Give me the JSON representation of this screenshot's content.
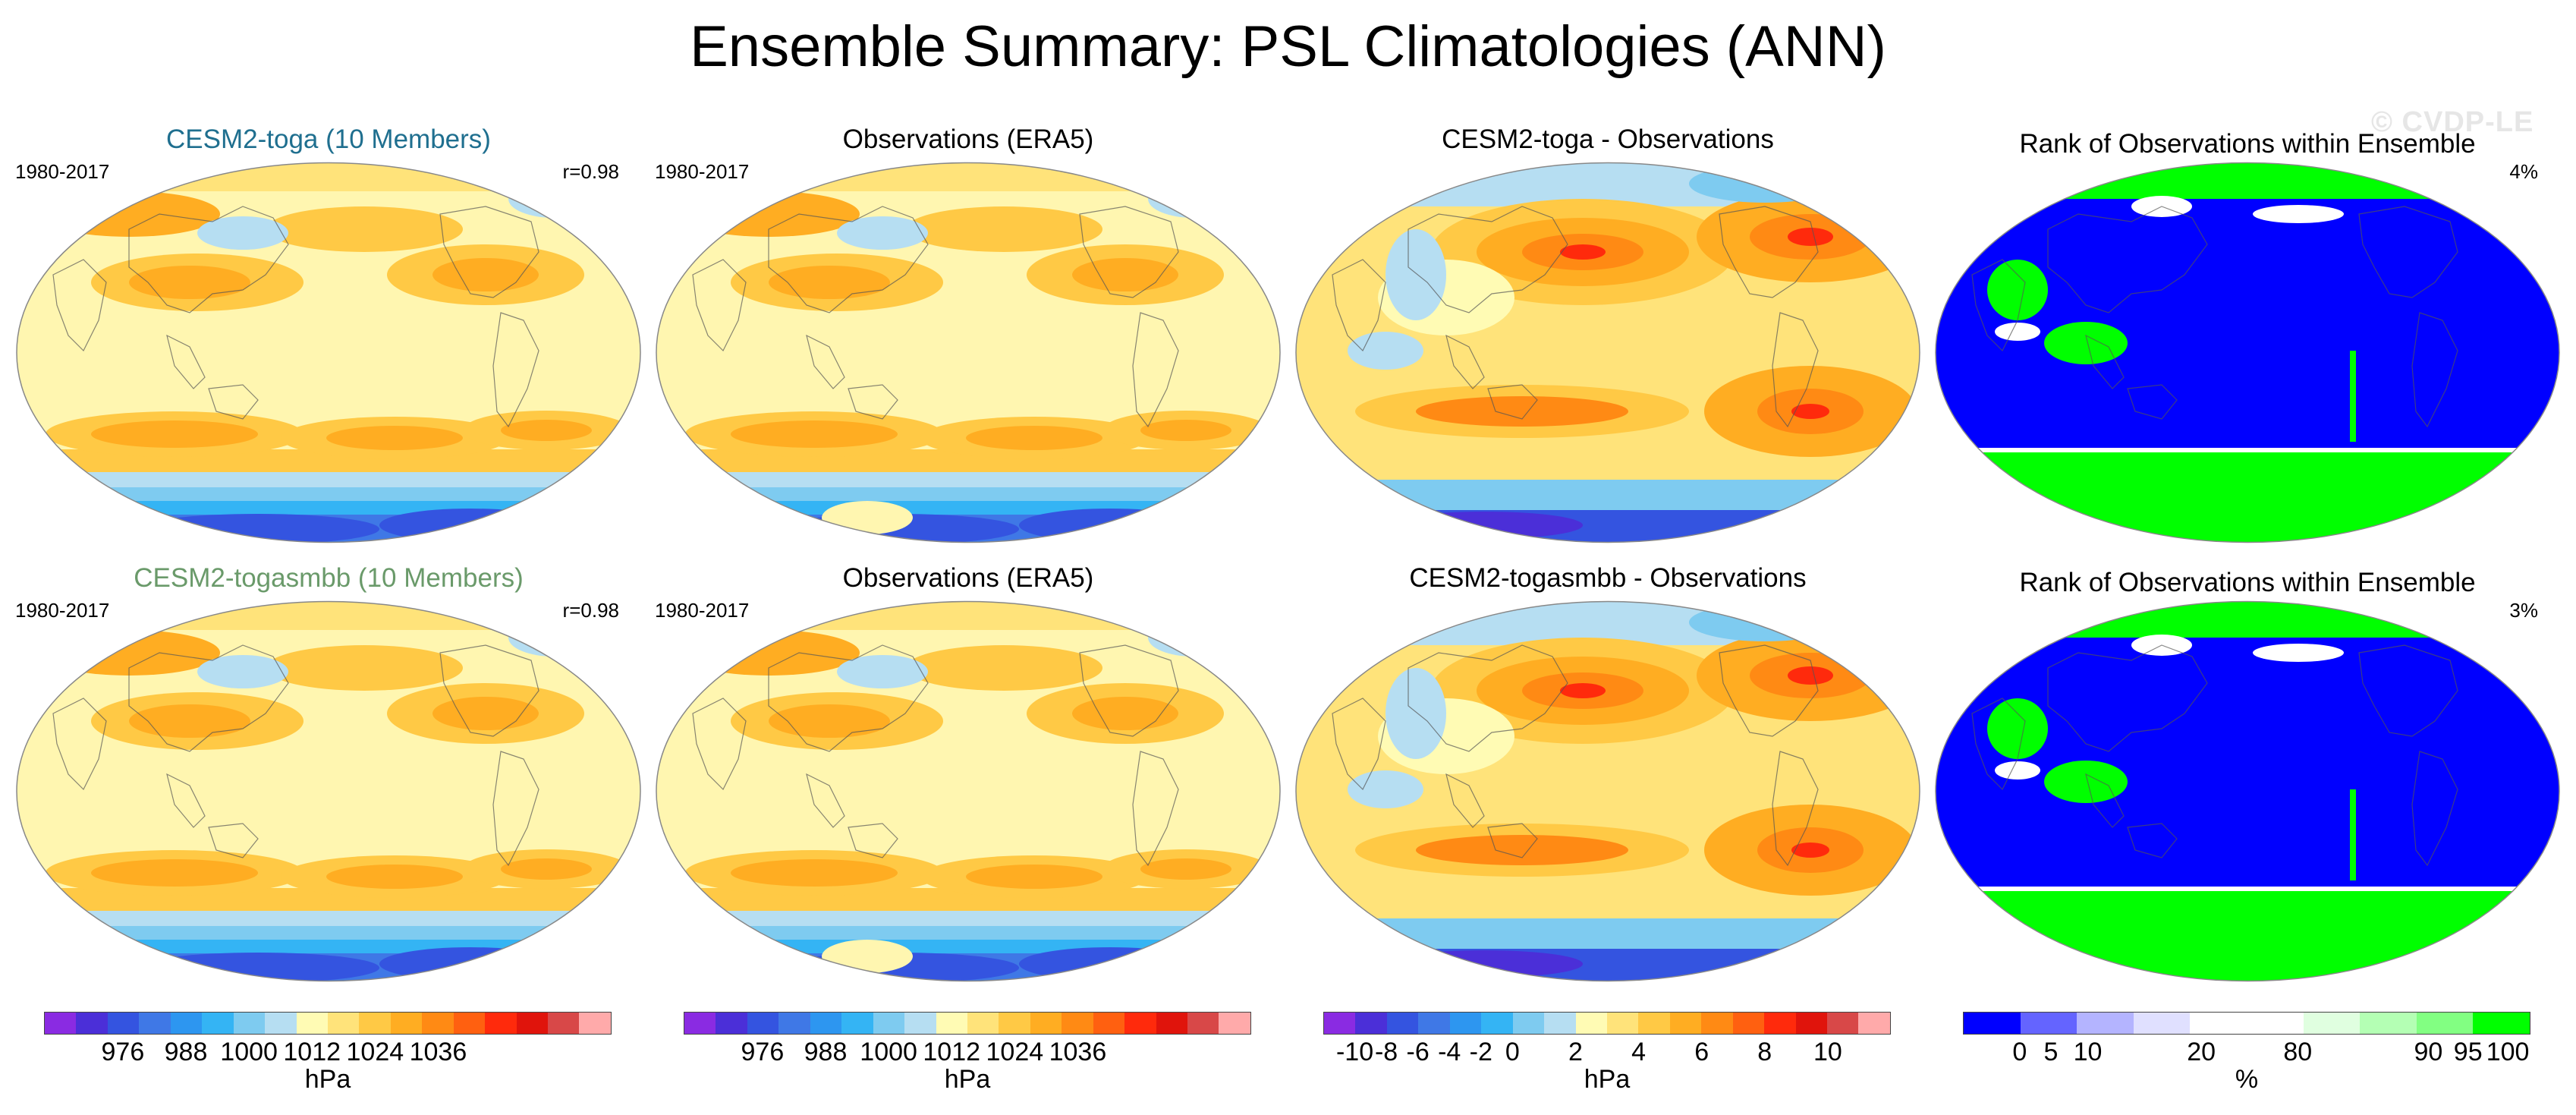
{
  "title": "Ensemble Summary: PSL Climatologies (ANN)",
  "watermark": "© CVDP-LE",
  "rows": [
    {
      "model_title": "CESM2-toga (10 Members)",
      "model_period": "1980-2017",
      "model_r": "r=0.98",
      "obs_title": "Observations (ERA5)",
      "obs_period": "1980-2017",
      "diff_title": "CESM2-toga - Observations",
      "rank_title": "Rank of Observations within Ensemble",
      "rank_pct": "4%"
    },
    {
      "model_title": "CESM2-togasmbb (10 Members)",
      "model_period": "1980-2017",
      "model_r": "r=0.98",
      "obs_title": "Observations (ERA5)",
      "obs_period": "1980-2017",
      "diff_title": "CESM2-togasmbb - Observations",
      "rank_title": "Rank of Observations within Ensemble",
      "rank_pct": "3%"
    }
  ],
  "colorbars": {
    "psl": {
      "ticks": [
        "976",
        "988",
        "1000",
        "1012",
        "1024",
        "1036"
      ],
      "unit": "hPa",
      "colors": [
        "#8a2be2",
        "#4b2fd8",
        "#3454e0",
        "#3f78e6",
        "#2d96f0",
        "#34b4f4",
        "#7ecbf0",
        "#b6def2",
        "#fffbb4",
        "#ffe37a",
        "#ffc945",
        "#ffad22",
        "#ff8a14",
        "#ff6010",
        "#ff2a0c",
        "#e0140c",
        "#d84848",
        "#ffaaaa"
      ]
    },
    "diff": {
      "ticks": [
        "-10",
        "-8",
        "-6",
        "-4",
        "-2",
        "0",
        "2",
        "4",
        "6",
        "8",
        "10"
      ],
      "unit": "hPa",
      "colors": [
        "#8a2be2",
        "#4b2fd8",
        "#3454e0",
        "#3f78e6",
        "#2d96f0",
        "#34b4f4",
        "#7ecbf0",
        "#b6def2",
        "#fffbb4",
        "#ffe37a",
        "#ffc945",
        "#ffad22",
        "#ff8a14",
        "#ff6010",
        "#ff2a0c",
        "#e0140c",
        "#d84848",
        "#ffaaaa"
      ]
    },
    "rank": {
      "ticks": [
        "0",
        "5",
        "10",
        "20",
        "80",
        "90",
        "95",
        "100"
      ],
      "unit": "%",
      "colors": [
        "#0000ff",
        "#6464ff",
        "#b4b4ff",
        "#e0e0ff",
        "#ffffff",
        "#ffffff",
        "#e0ffe0",
        "#b4ffb4",
        "#82ff82",
        "#00ff00"
      ]
    }
  },
  "chart_data": [
    {
      "type": "heatmap",
      "title": "CESM2-toga (10 Members)",
      "period": "1980-2017",
      "pattern_correlation": 0.98,
      "variable": "PSL",
      "units": "hPa",
      "levels": [
        970,
        976,
        982,
        988,
        994,
        1000,
        1006,
        1012,
        1018,
        1024,
        1030,
        1036,
        1042
      ]
    },
    {
      "type": "heatmap",
      "title": "Observations (ERA5)",
      "period": "1980-2017",
      "variable": "PSL",
      "units": "hPa",
      "levels": [
        970,
        976,
        982,
        988,
        994,
        1000,
        1006,
        1012,
        1018,
        1024,
        1030,
        1036,
        1042
      ]
    },
    {
      "type": "heatmap",
      "title": "CESM2-toga - Observations",
      "variable": "PSL difference",
      "units": "hPa",
      "levels": [
        -10,
        -8,
        -6,
        -4,
        -2,
        0,
        2,
        4,
        6,
        8,
        10
      ]
    },
    {
      "type": "heatmap",
      "title": "Rank of Observations within Ensemble",
      "value_label": "4%",
      "units": "%",
      "levels": [
        0,
        5,
        10,
        20,
        80,
        90,
        95,
        100
      ]
    },
    {
      "type": "heatmap",
      "title": "CESM2-togasmbb (10 Members)",
      "period": "1980-2017",
      "pattern_correlation": 0.98,
      "variable": "PSL",
      "units": "hPa",
      "levels": [
        970,
        976,
        982,
        988,
        994,
        1000,
        1006,
        1012,
        1018,
        1024,
        1030,
        1036,
        1042
      ]
    },
    {
      "type": "heatmap",
      "title": "Observations (ERA5)",
      "period": "1980-2017",
      "variable": "PSL",
      "units": "hPa",
      "levels": [
        970,
        976,
        982,
        988,
        994,
        1000,
        1006,
        1012,
        1018,
        1024,
        1030,
        1036,
        1042
      ]
    },
    {
      "type": "heatmap",
      "title": "CESM2-togasmbb - Observations",
      "variable": "PSL difference",
      "units": "hPa",
      "levels": [
        -10,
        -8,
        -6,
        -4,
        -2,
        0,
        2,
        4,
        6,
        8,
        10
      ]
    },
    {
      "type": "heatmap",
      "title": "Rank of Observations within Ensemble",
      "value_label": "3%",
      "units": "%",
      "levels": [
        0,
        5,
        10,
        20,
        80,
        90,
        95,
        100
      ]
    }
  ]
}
